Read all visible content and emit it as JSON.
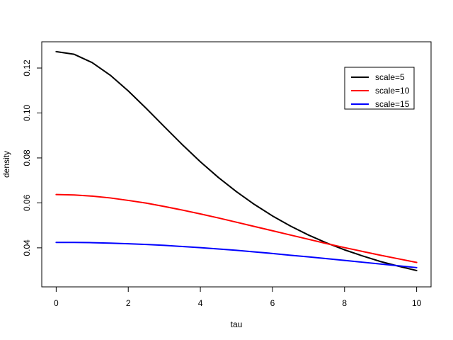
{
  "chart_data": {
    "type": "line",
    "xlabel": "tau",
    "ylabel": "density",
    "xlim": [
      -0.4,
      10.4
    ],
    "ylim": [
      0.02263,
      0.13167
    ],
    "xticks": [
      0,
      2,
      4,
      6,
      8,
      10
    ],
    "yticks": [
      0.04,
      0.06,
      0.08,
      0.1,
      0.12
    ],
    "grid": false,
    "legend_position": "top-right",
    "series": [
      {
        "name": "scale=5",
        "color": "#000000",
        "x": [
          0,
          0.5,
          1,
          1.5,
          2,
          2.5,
          3,
          3.5,
          4,
          4.5,
          5,
          5.5,
          6,
          6.5,
          7,
          7.5,
          8,
          8.5,
          9,
          9.5,
          10
        ],
        "y": [
          0.1273,
          0.1261,
          0.1224,
          0.1168,
          0.1098,
          0.102,
          0.0939,
          0.0859,
          0.0783,
          0.0713,
          0.065,
          0.0593,
          0.0542,
          0.0497,
          0.0457,
          0.0422,
          0.0391,
          0.0364,
          0.0339,
          0.0318,
          0.0299
        ]
      },
      {
        "name": "scale=10",
        "color": "#ff0000",
        "x": [
          0,
          0.5,
          1,
          1.5,
          2,
          2.5,
          3,
          3.5,
          4,
          4.5,
          5,
          5.5,
          6,
          6.5,
          7,
          7.5,
          8,
          8.5,
          9,
          9.5,
          10
        ],
        "y": [
          0.0637,
          0.0635,
          0.063,
          0.0622,
          0.0611,
          0.0599,
          0.0584,
          0.0568,
          0.0551,
          0.0533,
          0.0514,
          0.0495,
          0.0476,
          0.0457,
          0.0438,
          0.0419,
          0.0401,
          0.0384,
          0.0367,
          0.0351,
          0.0335
        ]
      },
      {
        "name": "scale=15",
        "color": "#0000ff",
        "x": [
          0,
          0.5,
          1,
          1.5,
          2,
          2.5,
          3,
          3.5,
          4,
          4.5,
          5,
          5.5,
          6,
          6.5,
          7,
          7.5,
          8,
          8.5,
          9,
          9.5,
          10
        ],
        "y": [
          0.0424,
          0.0424,
          0.0423,
          0.0421,
          0.0418,
          0.0415,
          0.0411,
          0.0406,
          0.0401,
          0.0395,
          0.0389,
          0.0382,
          0.0375,
          0.0367,
          0.036,
          0.0352,
          0.0344,
          0.0336,
          0.0328,
          0.032,
          0.0312
        ]
      }
    ]
  }
}
